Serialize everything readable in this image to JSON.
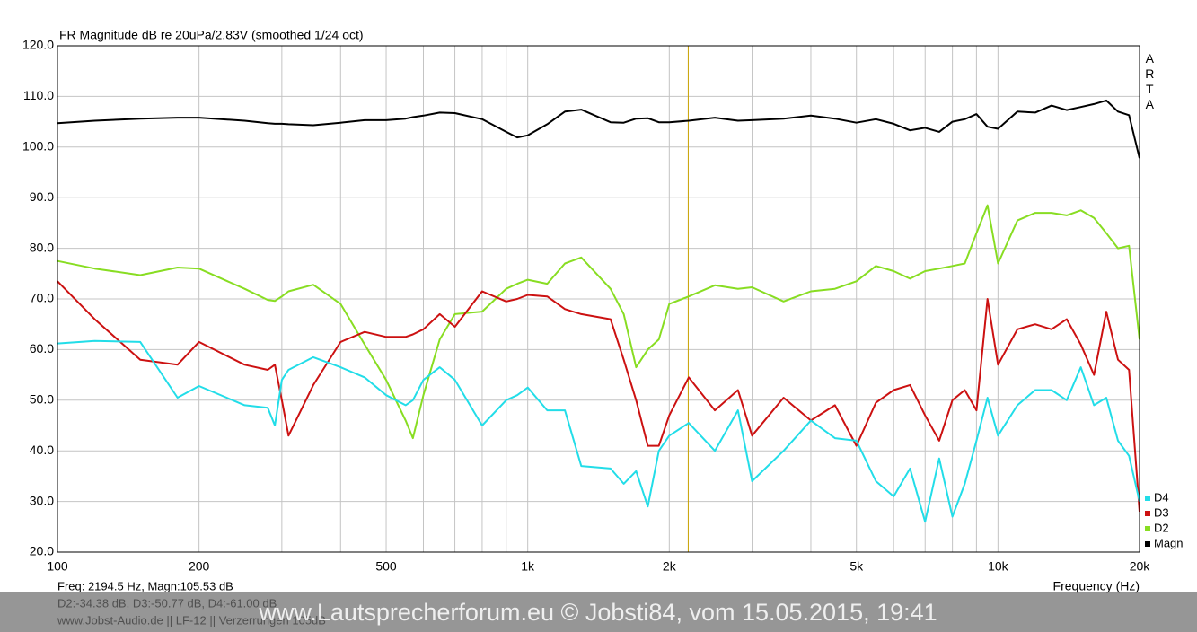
{
  "chart_data": {
    "type": "line",
    "title": "FR Magnitude dB re 20uPa/2.83V (smoothed 1/24 oct)",
    "xlabel": "Frequency (Hz)",
    "brand": "ARTA",
    "xscale": "log",
    "grid": true,
    "legend": "lower right",
    "xlim": [
      100,
      20000
    ],
    "ylim": [
      20,
      120
    ],
    "xticks": [
      100,
      200,
      500,
      {
        "value": 1000,
        "label": "1k"
      },
      {
        "value": 2000,
        "label": "2k"
      },
      {
        "value": 5000,
        "label": "5k"
      },
      {
        "value": 10000,
        "label": "10k"
      },
      {
        "value": 20000,
        "label": "20k"
      }
    ],
    "xminorticks": [
      300,
      400,
      600,
      700,
      800,
      900,
      3000,
      4000,
      6000,
      7000,
      8000,
      9000
    ],
    "yticks": [
      {
        "value": 20,
        "label": "20.0"
      },
      {
        "value": 30,
        "label": "30.0"
      },
      {
        "value": 40,
        "label": "40.0"
      },
      {
        "value": 50,
        "label": "50.0"
      },
      {
        "value": 60,
        "label": "60.0"
      },
      {
        "value": 70,
        "label": "70.0"
      },
      {
        "value": 80,
        "label": "80.0"
      },
      {
        "value": 90,
        "label": "90.0"
      },
      {
        "value": 100,
        "label": "100.0"
      },
      {
        "value": 110,
        "label": "110.0"
      },
      {
        "value": 120,
        "label": "120.0"
      }
    ],
    "cursor_x": 2194.5,
    "cursor_color": "#c8a200",
    "readout": [
      "Freq: 2194.5 Hz, Magn:105.53 dB",
      "D2:-34.38 dB, D3:-50.77 dB, D4:-61.00 dB",
      "www.Jobst-Audio.de  ||  LF-12  ||  Verzerrungen 105dB"
    ],
    "watermark": "www.Lautsprecherforum.eu © Jobsti84, vom 15.05.2015, 19:41",
    "x": [
      100,
      120,
      150,
      180,
      200,
      250,
      280,
      290,
      300,
      310,
      350,
      400,
      450,
      500,
      550,
      570,
      600,
      650,
      700,
      800,
      900,
      950,
      1000,
      1100,
      1200,
      1300,
      1500,
      1600,
      1700,
      1800,
      1900,
      2000,
      2200,
      2500,
      2800,
      3000,
      3500,
      4000,
      4500,
      5000,
      5500,
      6000,
      6500,
      7000,
      7500,
      8000,
      8500,
      9000,
      9500,
      10000,
      11000,
      12000,
      13000,
      14000,
      15000,
      16000,
      17000,
      18000,
      19000,
      20000
    ],
    "series": [
      {
        "name": "D4",
        "color": "#22dde8",
        "values": [
          61.2,
          61.7,
          61.5,
          50.5,
          52.8,
          49,
          48.5,
          45,
          54,
          56,
          58.5,
          56.5,
          54.5,
          51,
          49,
          50,
          54,
          56.5,
          54,
          45,
          50,
          51,
          52.5,
          48,
          48,
          37,
          36.5,
          33.5,
          36,
          29,
          40,
          43,
          45.5,
          40,
          48,
          34,
          40,
          46,
          42.5,
          42,
          34,
          31,
          36.5,
          26,
          38.5,
          27,
          33.5,
          42,
          50.5,
          43,
          49,
          52,
          52,
          50,
          56.5,
          49,
          50.5,
          42,
          39,
          30
        ]
      },
      {
        "name": "D3",
        "color": "#cc1111",
        "values": [
          73.5,
          66,
          58,
          57,
          61.5,
          57,
          56,
          57,
          50,
          43,
          53,
          61.5,
          63.5,
          62.5,
          62.5,
          63,
          64,
          67,
          64.5,
          71.5,
          69.5,
          70,
          70.8,
          70.5,
          68,
          67,
          66,
          58,
          50,
          41,
          41,
          47,
          54.5,
          48,
          52,
          43,
          50.5,
          46,
          49,
          41,
          49.5,
          52,
          53,
          47,
          42,
          50,
          52,
          48,
          70,
          57,
          64,
          65,
          64,
          66,
          61,
          55,
          67.5,
          58,
          56,
          28
        ]
      },
      {
        "name": "D2",
        "color": "#88dd22",
        "values": [
          77.5,
          76,
          74.7,
          76.2,
          76,
          72,
          69.8,
          69.6,
          70.5,
          71.5,
          72.8,
          69,
          61,
          54,
          46,
          42.5,
          51,
          62,
          67,
          67.5,
          72,
          73,
          73.8,
          73,
          77,
          78.2,
          72,
          67,
          56.5,
          60,
          62,
          69,
          70.5,
          72.7,
          72,
          72.3,
          69.5,
          71.5,
          72,
          73.5,
          76.5,
          75.5,
          74,
          75.5,
          76,
          76.5,
          77,
          83,
          88.5,
          77,
          85.5,
          87,
          87,
          86.5,
          87.5,
          86,
          83,
          80,
          80.5,
          62
        ]
      },
      {
        "name": "Magn",
        "color": "#000000",
        "values": [
          104.7,
          105.2,
          105.6,
          105.8,
          105.8,
          105.2,
          104.7,
          104.6,
          104.6,
          104.5,
          104.3,
          104.8,
          105.3,
          105.3,
          105.6,
          105.9,
          106.2,
          106.8,
          106.7,
          105.5,
          103,
          101.9,
          102.3,
          104.5,
          107,
          107.4,
          104.9,
          104.8,
          105.6,
          105.7,
          104.9,
          104.9,
          105.2,
          105.8,
          105.2,
          105.3,
          105.6,
          106.2,
          105.6,
          104.8,
          105.5,
          104.6,
          103.3,
          103.8,
          103,
          105,
          105.5,
          106.5,
          104,
          103.6,
          107,
          106.8,
          108.2,
          107.3,
          107.9,
          108.5,
          109.2,
          107,
          106.3,
          97.8
        ]
      }
    ]
  }
}
